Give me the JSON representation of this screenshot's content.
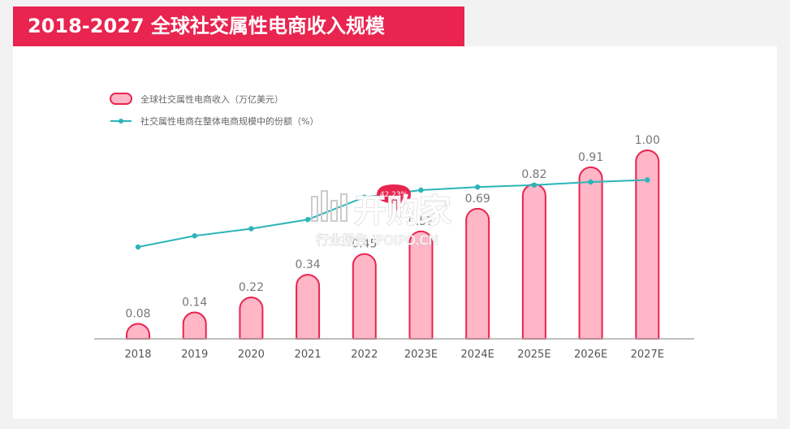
{
  "title": "2018-2027 全球社交属性电商收入规模",
  "chart_data": {
    "type": "bar",
    "categories": [
      "2018",
      "2019",
      "2020",
      "2021",
      "2022",
      "2023E",
      "2024E",
      "2025E",
      "2026E",
      "2027E"
    ],
    "series": [
      {
        "name": "全球社交属性电商收入（万亿美元）",
        "type": "bar",
        "values": [
          0.08,
          0.14,
          0.22,
          0.34,
          0.45,
          0.57,
          0.69,
          0.82,
          0.91,
          1.0
        ],
        "labels": [
          "0.08",
          "0.14",
          "0.22",
          "0.34",
          "0.45",
          "0.57",
          "0.69",
          "0.82",
          "0.91",
          "1.00"
        ]
      },
      {
        "name": "社交属性电商在整体电商规模中的份额（%）",
        "type": "line",
        "values": [
          5.5,
          6.6,
          7.3,
          8.2,
          10.4,
          11.1,
          11.4,
          11.6,
          11.9,
          12.1
        ]
      }
    ],
    "annotation": "42.23%",
    "grid": false,
    "legend_position": "top-left",
    "colors": {
      "bar_fill": "#ffb6c6",
      "bar_stroke": "#e8244f",
      "line": "#2bb5b8",
      "axis": "#aaaaaa"
    }
  },
  "watermark": {
    "logo": "IPO 开始",
    "line1": "开购家",
    "line2": "行业报告 IPOIPO.CN"
  }
}
